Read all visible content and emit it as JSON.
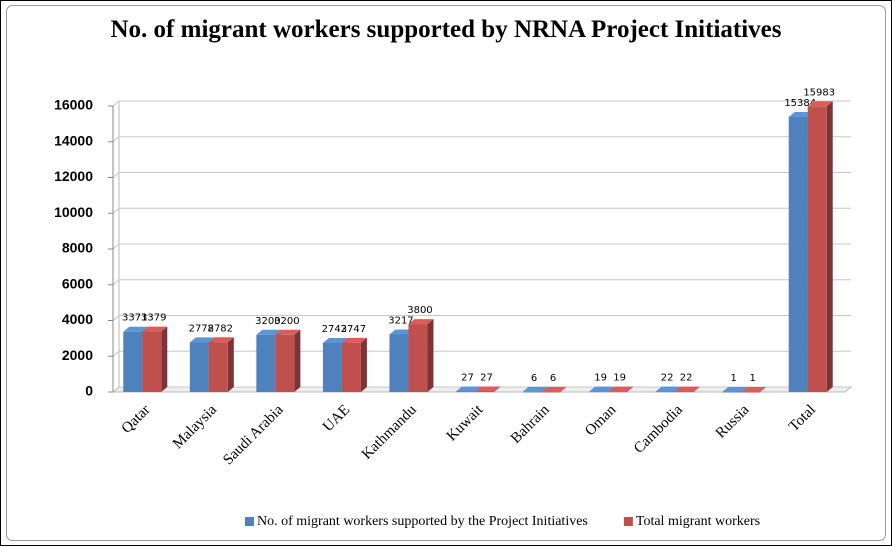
{
  "chart_data": {
    "type": "bar3d",
    "title": "No. of migrant workers supported by NRNA Project Initiatives",
    "categories": [
      "Qatar",
      "Malaysia",
      "Saudi Arabia",
      "UAE",
      "Kathmandu",
      "Kuwait",
      "Bahrain",
      "Oman",
      "Cambodia",
      "Russia",
      "Total"
    ],
    "series": [
      {
        "name": "No. of migrant workers supported by the Project Initiatives",
        "color": "#4f81bd",
        "values": [
          3371,
          2778,
          3200,
          2743,
          3217,
          27,
          6,
          19,
          22,
          1,
          15384
        ]
      },
      {
        "name": "Total migrant workers",
        "color": "#c0504d",
        "values": [
          3379,
          2782,
          3200,
          2747,
          3800,
          27,
          6,
          19,
          22,
          1,
          15983
        ]
      }
    ],
    "ylim": [
      0,
      16000
    ],
    "yticks": [
      0,
      2000,
      4000,
      6000,
      8000,
      10000,
      12000,
      14000,
      16000
    ],
    "grid": true,
    "legend": "bottom"
  }
}
